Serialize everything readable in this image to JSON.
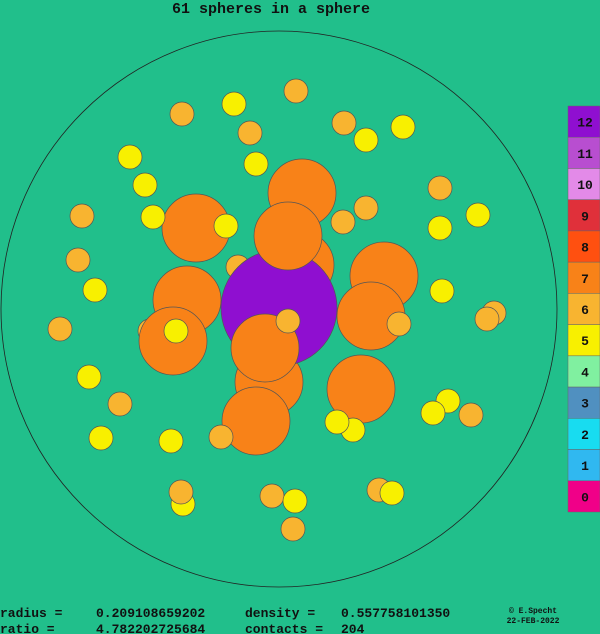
{
  "title": "61 spheres in a sphere",
  "legend": [
    {
      "label": "12",
      "color": "#8f0fd0"
    },
    {
      "label": "11",
      "color": "#b84ed0"
    },
    {
      "label": "10",
      "color": "#e38ae8"
    },
    {
      "label": "9",
      "color": "#e0303a"
    },
    {
      "label": "8",
      "color": "#ff5010"
    },
    {
      "label": "7",
      "color": "#f88218"
    },
    {
      "label": "6",
      "color": "#f8b430"
    },
    {
      "label": "5",
      "color": "#f8f000"
    },
    {
      "label": "4",
      "color": "#80f0a0"
    },
    {
      "label": "3",
      "color": "#5090c0"
    },
    {
      "label": "2",
      "color": "#18dcf0"
    },
    {
      "label": "1",
      "color": "#30b8f0"
    },
    {
      "label": "0",
      "color": "#f00088"
    }
  ],
  "stats": [
    {
      "label": "radius =",
      "value": "0.209108659202",
      "label2": "density  =",
      "value2": "0.557758101350"
    },
    {
      "label": "ratio  =",
      "value": "4.782202725684",
      "label2": "contacts =",
      "value2": "204"
    }
  ],
  "credit": {
    "author": "© E.Specht",
    "date": "22-FEB-2022"
  }
}
